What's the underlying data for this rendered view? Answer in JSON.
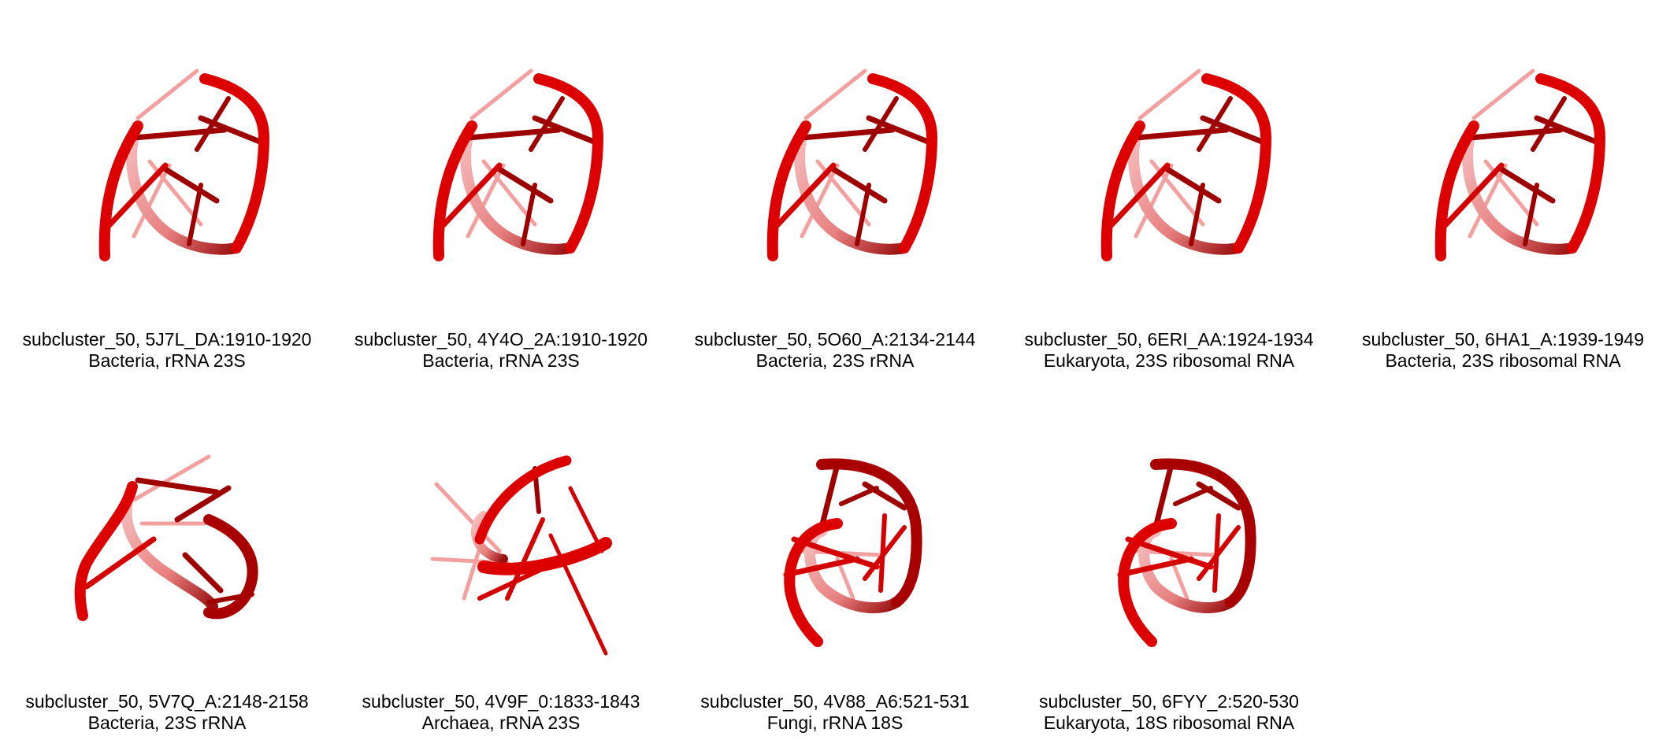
{
  "structures": [
    {
      "title": "subcluster_50, 5J7L_DA:1910-1920",
      "subtitle": "Bacteria, rRNA 23S",
      "pose": "a"
    },
    {
      "title": "subcluster_50, 4Y4O_2A:1910-1920",
      "subtitle": "Bacteria, rRNA 23S",
      "pose": "a"
    },
    {
      "title": "subcluster_50, 5O60_A:2134-2144",
      "subtitle": "Bacteria, 23S rRNA",
      "pose": "a"
    },
    {
      "title": "subcluster_50, 6ERI_AA:1924-1934",
      "subtitle": "Eukaryota, 23S ribosomal RNA",
      "pose": "a"
    },
    {
      "title": "subcluster_50, 6HA1_A:1939-1949",
      "subtitle": "Bacteria, 23S ribosomal RNA",
      "pose": "a"
    },
    {
      "title": "subcluster_50, 5V7Q_A:2148-2158",
      "subtitle": "Bacteria, 23S rRNA",
      "pose": "b"
    },
    {
      "title": "subcluster_50, 4V9F_0:1833-1843",
      "subtitle": "Archaea, rRNA 23S",
      "pose": "c"
    },
    {
      "title": "subcluster_50, 4V88_A6:521-531",
      "subtitle": "Fungi, rRNA 18S",
      "pose": "d"
    },
    {
      "title": "subcluster_50, 6FYY_2:520-530",
      "subtitle": "Eukaryota, 18S ribosomal RNA",
      "pose": "d"
    }
  ],
  "colors": {
    "backbone": "#dd0000",
    "backbone_dark": "#a80000",
    "backbone_faded": "#f3a8a8",
    "base_stick": "#d40000",
    "base_stick_dark": "#9e0000",
    "base_stick_faded": "#f2a0a0"
  }
}
